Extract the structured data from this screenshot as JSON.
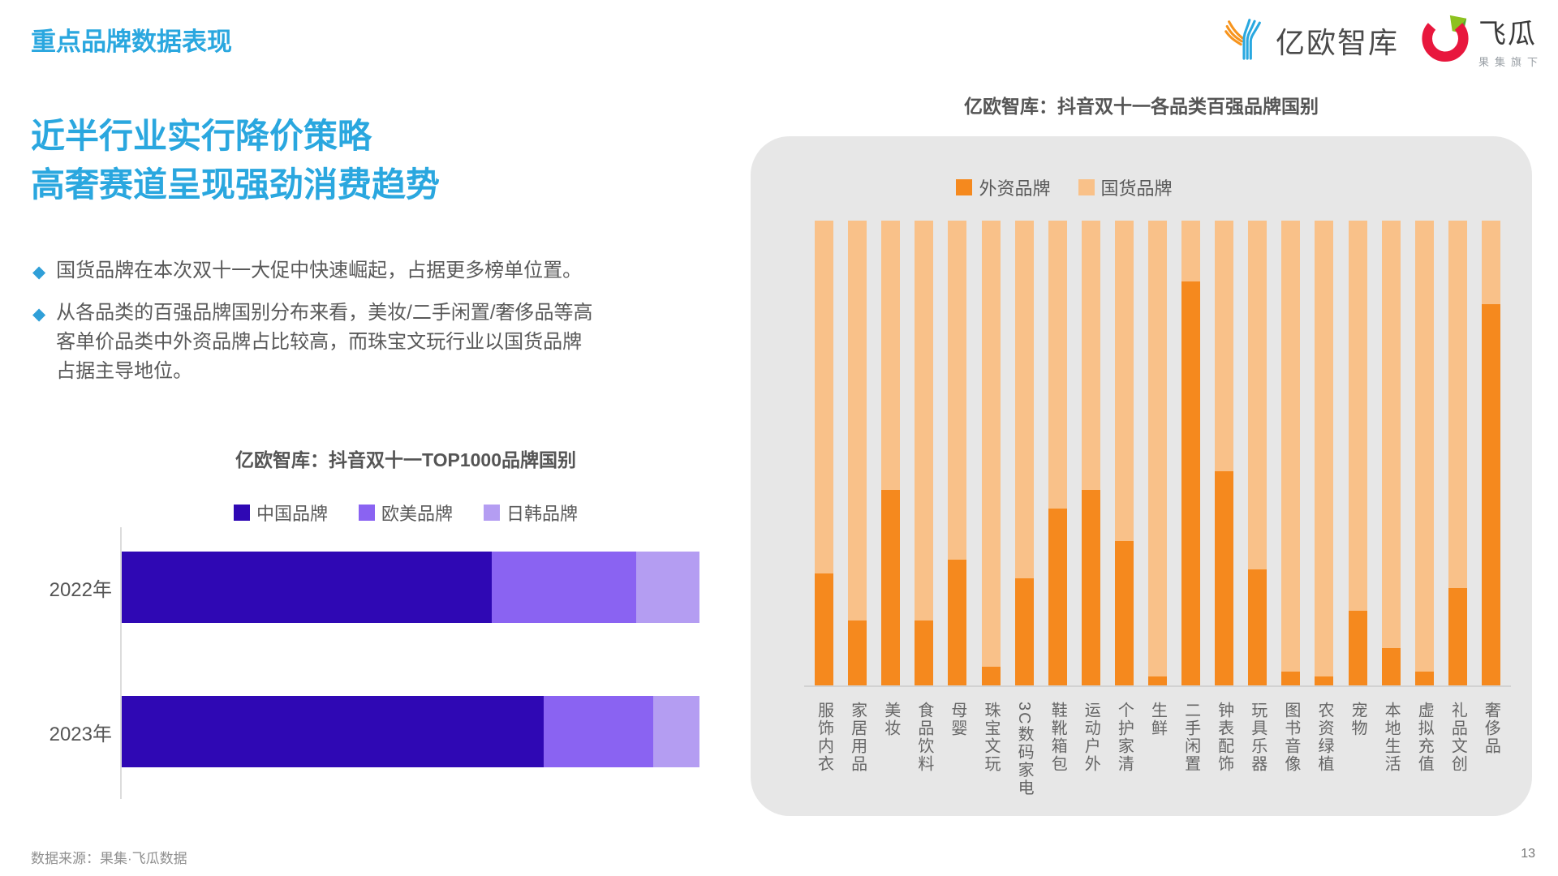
{
  "page": {
    "header_title": "重点品牌数据表现",
    "footer_source": "数据来源：果集·飞瓜数据",
    "page_number": "13"
  },
  "logos": {
    "eo_name": "亿欧智库",
    "feigua_name": "飞瓜",
    "feigua_sub": "果集旗下"
  },
  "left": {
    "headline_line1": "近半行业实行降价策略",
    "headline_line2": "高奢赛道呈现强劲消费趋势",
    "bullets": [
      "国货品牌在本次双十一大促中快速崛起，占据更多榜单位置。",
      "从各品类的百强品牌国别分布来看，美妆/二手闲置/奢侈品等高客单价品类中外资品牌占比较高，而珠宝文玩行业以国货品牌占据主导地位。"
    ]
  },
  "colors": {
    "accent_blue": "#2aa7df",
    "china_brand": "#2f08b4",
    "western_brand": "#8a63f2",
    "jk_brand": "#b49df2",
    "foreign_orange": "#f5891e",
    "domestic_orange": "#f9c189",
    "panel_gray": "#e7e7e7"
  },
  "chart_data": [
    {
      "type": "bar",
      "orientation": "horizontal",
      "stacked": true,
      "unit": "percent",
      "title": "亿欧智库：抖音双十一TOP1000品牌国别",
      "categories": [
        "2022年",
        "2023年"
      ],
      "series": [
        {
          "name": "中国品牌",
          "color": "#2f08b4",
          "values": [
            64,
            73
          ]
        },
        {
          "name": "欧美品牌",
          "color": "#8a63f2",
          "values": [
            25,
            19
          ]
        },
        {
          "name": "日韩品牌",
          "color": "#b49df2",
          "values": [
            11,
            8
          ]
        }
      ],
      "xlim": [
        0,
        100
      ],
      "legend_position": "top",
      "grid": false
    },
    {
      "type": "bar",
      "orientation": "vertical",
      "stacked": true,
      "unit": "percent",
      "title": "亿欧智库：抖音双十一各品类百强品牌国别",
      "categories": [
        "服饰内衣",
        "家居用品",
        "美妆",
        "食品饮料",
        "母婴",
        "珠宝文玩",
        "3C数码家电",
        "鞋靴箱包",
        "运动户外",
        "个护家清",
        "生鲜",
        "二手闲置",
        "钟表配饰",
        "玩具乐器",
        "图书音像",
        "农资绿植",
        "宠物",
        "本地生活",
        "虚拟充值",
        "礼品文创",
        "奢侈品"
      ],
      "series": [
        {
          "name": "外资品牌",
          "color": "#f5891e",
          "values": [
            24,
            14,
            42,
            14,
            27,
            4,
            23,
            38,
            42,
            31,
            2,
            87,
            46,
            25,
            3,
            2,
            16,
            8,
            3,
            21,
            82
          ]
        },
        {
          "name": "国货品牌",
          "color": "#f9c189",
          "values": [
            76,
            86,
            58,
            86,
            73,
            96,
            77,
            62,
            58,
            69,
            98,
            13,
            54,
            75,
            97,
            98,
            84,
            92,
            97,
            79,
            18
          ]
        }
      ],
      "ylim": [
        0,
        100
      ],
      "legend_position": "top",
      "grid": false
    }
  ]
}
